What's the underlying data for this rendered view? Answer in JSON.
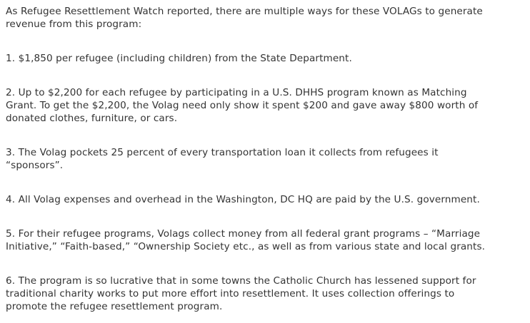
{
  "page": {
    "background_color": "#ffffff",
    "text_color": "#333333"
  },
  "article": {
    "paragraphs": [
      "As Refugee Resettlement Watch reported, there are multiple ways for these VOLAGs to generate\nrevenue from this program:",
      "1. $1,850 per refugee (including children) from the State Department.",
      "2. Up to $2,200 for each refugee by participating in a U.S. DHHS program known as Matching\nGrant. To get the $2,200, the Volag need only show it spent $200 and gave away $800 worth of\ndonated clothes, furniture, or cars.",
      "3. The Volag pockets 25 percent of every transportation loan it collects from refugees it\n“sponsors”.",
      "4. All Volag expenses and overhead in the Washington, DC HQ are paid by the U.S. government.",
      "5. For their refugee programs, Volags collect money from all federal grant programs – “Marriage\nInitiative,” “Faith-based,” “Ownership Society etc., as well as from various state and local grants.",
      "6. The program is so lucrative that in some towns the Catholic Church has lessened support for\ntraditional charity works to put more effort into resettlement. It uses collection offerings to\npromote the refugee resettlement program."
    ]
  }
}
